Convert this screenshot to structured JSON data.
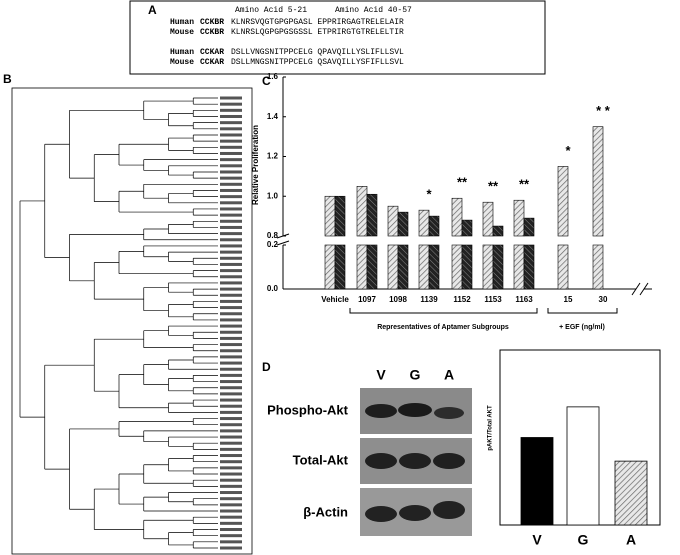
{
  "panel_labels": [
    "A",
    "B",
    "C",
    "D"
  ],
  "panel_a": {
    "headers": [
      "Amino Acid 5-21",
      "Amino Acid 40-57"
    ],
    "rows": [
      [
        "Human",
        "CCKBR",
        "KLNRSVQGTGPGPGASL EPPRIRGAGTRELELAIR"
      ],
      [
        "Mouse",
        "CCKBR",
        "KLNRSLQGPGPGSGSSL ETPRIRGTGTRELELTIR"
      ],
      [
        "Human",
        "CCKAR",
        "DSLLVNGSNITPPCELG QPAVQILLYSLIFLLSVL"
      ],
      [
        "Mouse",
        "CCKAR",
        "DSLLMNGSNITPPCELG QSAVQILLYSFIFLLSVL"
      ]
    ]
  },
  "panel_d_blot": {
    "lanes": [
      "V",
      "G",
      "A"
    ],
    "rows": [
      "Phospho-Akt",
      "Total-Akt",
      "β-Actin"
    ]
  },
  "chart_data": [
    {
      "type": "bar",
      "y_label": "Relative Proliferation",
      "categories": [
        "Vehicle",
        "1097",
        "1098",
        "1139",
        "1152",
        "1153",
        "1163",
        "15",
        "30"
      ],
      "series": [
        {
          "color": "#cfcfcf",
          "values": [
            1.0,
            1.05,
            0.95,
            0.93,
            0.99,
            0.97,
            0.98,
            1.15,
            1.35
          ]
        },
        {
          "color": "#3a3a3a",
          "values": [
            1.0,
            1.01,
            0.92,
            0.9,
            0.88,
            0.85,
            0.89,
            null,
            null
          ]
        }
      ],
      "annotations": [
        null,
        null,
        null,
        "*",
        "**",
        "**",
        "**",
        "*",
        "* *"
      ],
      "group_labels": [
        "Representatives of Aptamer Subgroups",
        "+ EGF (ng/ml)"
      ],
      "ylim": [
        0,
        1.6
      ],
      "y_break": [
        0.2,
        0.8
      ],
      "yticks": [
        {
          "value": 0,
          "label": "0.0"
        },
        0.2,
        0.8,
        {
          "value": 1,
          "label": "1.0"
        },
        1.2,
        1.4,
        1.6
      ]
    },
    {
      "type": "bar",
      "y_label": "pAKT/Total AKT",
      "categories": [
        "V",
        "G",
        "A"
      ],
      "values": [
        1.0,
        1.35,
        0.73
      ],
      "colors": [
        "#000000",
        "#ffffff",
        "#bdbdbd"
      ],
      "ylim": [
        0,
        2
      ]
    }
  ]
}
